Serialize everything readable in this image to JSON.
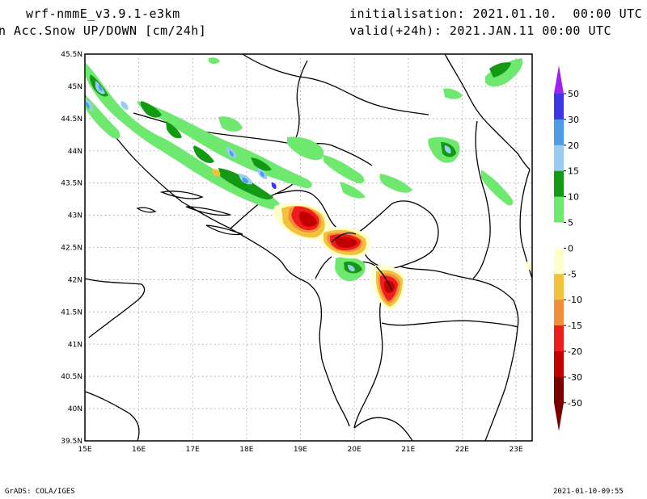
{
  "header": {
    "model": "wrf-nmmE_v3.9.1-e3km",
    "field": "n Acc.Snow UP/DOWN [cm/24h]",
    "init": "initialisation: 2021.01.10.  00:00 UTC",
    "valid": "valid(+24h): 2021.JAN.11 00:00 UTC"
  },
  "footer": {
    "left": "GrADS: COLA/IGES",
    "right": "2021-01-10-09:55"
  },
  "map": {
    "lat_labels": [
      "45.5N",
      "45N",
      "44.5N",
      "44N",
      "43.5N",
      "43N",
      "42.5N",
      "42N",
      "41.5N",
      "41N",
      "40.5N",
      "40N",
      "39.5N"
    ],
    "lon_labels": [
      "15E",
      "16E",
      "17E",
      "18E",
      "19E",
      "20E",
      "21E",
      "22E",
      "23E"
    ],
    "lat_range": [
      39.5,
      45.5
    ],
    "lon_range": [
      15,
      23.3
    ],
    "grid": "dotted"
  },
  "colorbar": {
    "labels": [
      "50",
      "30",
      "20",
      "15",
      "10",
      "5",
      "0",
      "-5",
      "-10",
      "-15",
      "-20",
      "-30",
      "-50"
    ],
    "colors": [
      "#6b2be0",
      "#3b36e8",
      "#4d9ce8",
      "#99ccf2",
      "#129a12",
      "#6ee86e",
      "#ffffff",
      "#ffffcc",
      "#f2c23a",
      "#f28e3a",
      "#ee1c1c",
      "#c20000",
      "#7a0000"
    ],
    "top_arrow_color": "#a020f0",
    "bottom_arrow_color": "#7a0000"
  },
  "colors": {
    "light_green": "#6ee86e",
    "dark_green": "#129a12",
    "light_blue": "#99ccf2",
    "mid_blue": "#4d9ce8",
    "cream": "#ffffcc",
    "yellow": "#f2c23a",
    "orange": "#f28e3a",
    "red": "#ee1c1c",
    "dark_red": "#c20000"
  }
}
